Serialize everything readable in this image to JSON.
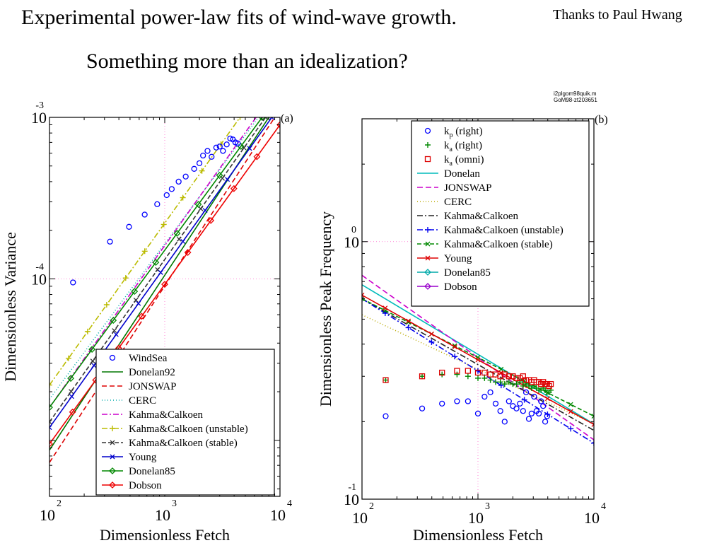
{
  "slide": {
    "title": "Experimental power-law fits of wind-wave growth.",
    "subtitle": "Something more than an idealization?",
    "credit": "Thanks to Paul Hwang",
    "stamp_line1": "i2plgom98quik.m",
    "stamp_line2": "GoM98-zt203651"
  },
  "chart_data": [
    {
      "panel": "(a)",
      "type": "scatter",
      "xlabel": "Dimensionless Fetch",
      "ylabel": "Dimensionless Variance",
      "xscale": "log",
      "yscale": "log",
      "xlim": [
        100,
        10000
      ],
      "ylim": [
        4.5e-06,
        0.001
      ],
      "xticks": [
        {
          "base": "10",
          "exp": "2"
        },
        {
          "base": "10",
          "exp": "3"
        },
        {
          "base": "10",
          "exp": "4"
        }
      ],
      "yticks": [
        {
          "base": "10",
          "exp": "-4"
        },
        {
          "base": "10",
          "exp": "-3"
        }
      ],
      "legend_position": "bottom-right",
      "scatter": {
        "name": "WindSea",
        "color": "#0000ff",
        "marker": "circle",
        "points": [
          [
            160,
            9.5e-05
          ],
          [
            335,
            0.00017
          ],
          [
            490,
            0.00021
          ],
          [
            670,
            0.00025
          ],
          [
            860,
            0.00029
          ],
          [
            1040,
            0.00033
          ],
          [
            1150,
            0.00036
          ],
          [
            1320,
            0.0004
          ],
          [
            1520,
            0.00043
          ],
          [
            1800,
            0.00048
          ],
          [
            2000,
            0.00052
          ],
          [
            2150,
            0.00058
          ],
          [
            2350,
            0.00062
          ],
          [
            2550,
            0.00057
          ],
          [
            2800,
            0.00065
          ],
          [
            3000,
            0.00066
          ],
          [
            3200,
            0.00062
          ],
          [
            3450,
            0.00068
          ],
          [
            3700,
            0.00074
          ],
          [
            3900,
            0.00073
          ],
          [
            4100,
            0.0007
          ],
          [
            4300,
            0.00069
          ]
        ]
      },
      "series": [
        {
          "name": "Donelan92",
          "color": "#007700",
          "dash": "none",
          "marker": "none",
          "points": [
            [
              100,
              8.7e-06
            ],
            [
              8000,
              0.001
            ]
          ]
        },
        {
          "name": "JONSWAP",
          "color": "#dd0000",
          "dash": "7,4",
          "marker": "none",
          "points": [
            [
              100,
              7.3e-06
            ],
            [
              9000,
              0.001
            ]
          ]
        },
        {
          "name": "CERC",
          "color": "#00aaaa",
          "dash": "1,3",
          "marker": "none",
          "points": [
            [
              100,
              1.8e-05
            ],
            [
              6500,
              0.001
            ]
          ]
        },
        {
          "name": "Kahma&Calkoen",
          "color": "#cc00cc",
          "dash": "8,3,2,3",
          "marker": "none",
          "points": [
            [
              100,
              1.6e-05
            ],
            [
              6200,
              0.001
            ]
          ]
        },
        {
          "name": "Kahma&Calkoen (unstable)",
          "color": "#bbbb00",
          "dash": "8,3,2,3",
          "marker": "plus",
          "points": [
            [
              100,
              2.2e-05
            ],
            [
              4500,
              0.001
            ]
          ]
        },
        {
          "name": "Kahma&Calkoen (stable)",
          "color": "#333333",
          "dash": "6,3",
          "marker": "x",
          "points": [
            [
              100,
              1.3e-05
            ],
            [
              7500,
              0.001
            ]
          ]
        },
        {
          "name": "Young",
          "color": "#0000cc",
          "dash": "none",
          "marker": "x",
          "points": [
            [
              100,
              1.2e-05
            ],
            [
              8500,
              0.001
            ]
          ]
        },
        {
          "name": "Donelan85",
          "color": "#008800",
          "dash": "none",
          "marker": "diamond",
          "points": [
            [
              100,
              1.6e-05
            ],
            [
              7000,
              0.001
            ]
          ]
        },
        {
          "name": "Dobson",
          "color": "#ee0000",
          "dash": "none",
          "marker": "diamond",
          "points": [
            [
              100,
              9.5e-06
            ],
            [
              10000,
              0.0009
            ]
          ]
        }
      ]
    },
    {
      "panel": "(b)",
      "type": "scatter",
      "xlabel": "Dimensionless Fetch",
      "ylabel": "Dimensionless Peak Frequency",
      "xscale": "log",
      "yscale": "log",
      "xlim": [
        100,
        10000
      ],
      "ylim": [
        0.1,
        3.0
      ],
      "xticks": [
        {
          "base": "10",
          "exp": "2"
        },
        {
          "base": "10",
          "exp": "3"
        },
        {
          "base": "10",
          "exp": "4"
        }
      ],
      "yticks": [
        {
          "base": "10",
          "exp": "-1"
        },
        {
          "base": "10",
          "exp": "0"
        }
      ],
      "legend_position": "top-left",
      "scatter": [
        {
          "name": "k_p (right)",
          "color": "#0000ff",
          "marker": "circle",
          "points": [
            [
              160,
              0.21
            ],
            [
              330,
              0.225
            ],
            [
              490,
              0.235
            ],
            [
              660,
              0.24
            ],
            [
              820,
              0.24
            ],
            [
              1000,
              0.215
            ],
            [
              1140,
              0.25
            ],
            [
              1280,
              0.26
            ],
            [
              1420,
              0.235
            ],
            [
              1560,
              0.22
            ],
            [
              1700,
              0.2
            ],
            [
              1850,
              0.24
            ],
            [
              2000,
              0.23
            ],
            [
              2150,
              0.225
            ],
            [
              2300,
              0.235
            ],
            [
              2450,
              0.22
            ],
            [
              2600,
              0.26
            ],
            [
              2750,
              0.205
            ],
            [
              2900,
              0.215
            ],
            [
              3050,
              0.25
            ],
            [
              3200,
              0.22
            ],
            [
              3350,
              0.215
            ],
            [
              3500,
              0.24
            ],
            [
              3650,
              0.23
            ],
            [
              3800,
              0.2
            ],
            [
              3950,
              0.21
            ]
          ]
        },
        {
          "name": "k_a (right)",
          "color": "#008800",
          "marker": "plus",
          "points": [
            [
              160,
              0.29
            ],
            [
              330,
              0.3
            ],
            [
              490,
              0.305
            ],
            [
              660,
              0.305
            ],
            [
              820,
              0.3
            ],
            [
              1000,
              0.295
            ],
            [
              1140,
              0.295
            ],
            [
              1280,
              0.29
            ],
            [
              1420,
              0.285
            ],
            [
              1560,
              0.285
            ],
            [
              1700,
              0.28
            ],
            [
              1850,
              0.285
            ],
            [
              2000,
              0.28
            ],
            [
              2150,
              0.28
            ],
            [
              2300,
              0.285
            ],
            [
              2450,
              0.275
            ],
            [
              2600,
              0.28
            ],
            [
              2750,
              0.275
            ],
            [
              2900,
              0.27
            ],
            [
              3050,
              0.275
            ],
            [
              3200,
              0.27
            ],
            [
              3350,
              0.265
            ],
            [
              3500,
              0.265
            ],
            [
              3650,
              0.27
            ],
            [
              3800,
              0.265
            ],
            [
              3950,
              0.26
            ],
            [
              4100,
              0.26
            ],
            [
              4250,
              0.265
            ]
          ]
        },
        {
          "name": "k_a (omni)",
          "color": "#dd0000",
          "marker": "square",
          "points": [
            [
              160,
              0.29
            ],
            [
              330,
              0.3
            ],
            [
              490,
              0.31
            ],
            [
              660,
              0.315
            ],
            [
              820,
              0.315
            ],
            [
              1000,
              0.31
            ],
            [
              1140,
              0.31
            ],
            [
              1280,
              0.305
            ],
            [
              1420,
              0.305
            ],
            [
              1560,
              0.3
            ],
            [
              1700,
              0.305
            ],
            [
              1850,
              0.3
            ],
            [
              2000,
              0.3
            ],
            [
              2150,
              0.295
            ],
            [
              2300,
              0.295
            ],
            [
              2450,
              0.3
            ],
            [
              2600,
              0.29
            ],
            [
              2750,
              0.29
            ],
            [
              2900,
              0.285
            ],
            [
              3050,
              0.29
            ],
            [
              3200,
              0.285
            ],
            [
              3350,
              0.285
            ],
            [
              3500,
              0.28
            ],
            [
              3650,
              0.285
            ],
            [
              3800,
              0.28
            ],
            [
              3950,
              0.28
            ],
            [
              4100,
              0.275
            ],
            [
              4250,
              0.28
            ]
          ]
        }
      ],
      "series": [
        {
          "name": "Donelan",
          "color": "#00bbbb",
          "dash": "none",
          "marker": "none",
          "points": [
            [
              100,
              0.68
            ],
            [
              10000,
              0.196
            ]
          ]
        },
        {
          "name": "JONSWAP",
          "color": "#cc00cc",
          "dash": "8,4",
          "marker": "none",
          "points": [
            [
              100,
              0.74
            ],
            [
              10000,
              0.17
            ]
          ]
        },
        {
          "name": "CERC",
          "color": "#bbaa00",
          "dash": "1,3",
          "marker": "none",
          "points": [
            [
              100,
              0.52
            ],
            [
              10000,
              0.196
            ]
          ]
        },
        {
          "name": "Kahma&Calkoen",
          "color": "#222222",
          "dash": "8,3,2,3",
          "marker": "none",
          "points": [
            [
              100,
              0.6
            ],
            [
              10000,
              0.185
            ]
          ]
        },
        {
          "name": "Kahma&Calkoen (unstable)",
          "color": "#0000ee",
          "dash": "8,3,2,3",
          "marker": "plus",
          "points": [
            [
              100,
              0.6
            ],
            [
              10000,
              0.165
            ]
          ]
        },
        {
          "name": "Kahma&Calkoen (stable)",
          "color": "#008800",
          "dash": "6,3",
          "marker": "x",
          "points": [
            [
              100,
              0.6
            ],
            [
              10000,
              0.21
            ]
          ]
        },
        {
          "name": "Young",
          "color": "#dd0000",
          "dash": "none",
          "marker": "x",
          "points": [
            [
              100,
              0.62
            ],
            [
              10000,
              0.195
            ]
          ]
        },
        {
          "name": "Donelan85",
          "color": "#00aaaa",
          "dash": "none",
          "marker": "diamond",
          "points": []
        },
        {
          "name": "Dobson",
          "color": "#9900cc",
          "dash": "none",
          "marker": "diamond",
          "points": []
        }
      ]
    }
  ]
}
